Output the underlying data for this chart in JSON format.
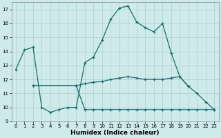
{
  "xlabel": "Humidex (Indice chaleur)",
  "bg_color": "#ceeaea",
  "grid_color": "#add0d0",
  "line_color": "#1a6b6b",
  "ylim": [
    9,
    17.5
  ],
  "xlim": [
    -0.5,
    23.5
  ],
  "yticks": [
    9,
    10,
    11,
    12,
    13,
    14,
    15,
    16,
    17
  ],
  "xticks": [
    0,
    1,
    2,
    3,
    4,
    5,
    6,
    7,
    8,
    9,
    10,
    11,
    12,
    13,
    14,
    15,
    16,
    17,
    18,
    19,
    20,
    21,
    22,
    23
  ],
  "line1_x": [
    0,
    1,
    2,
    3,
    4,
    5,
    6,
    7,
    8,
    9,
    10,
    11,
    12,
    13,
    14,
    15,
    16,
    17,
    18,
    19,
    20,
    21,
    22,
    23
  ],
  "line1_y": [
    12.7,
    14.1,
    14.3,
    10.0,
    9.65,
    9.85,
    10.0,
    10.0,
    13.2,
    13.6,
    14.8,
    16.3,
    17.1,
    17.25,
    16.1,
    15.7,
    15.4,
    16.0,
    13.9,
    12.2,
    11.5,
    11.0,
    10.4,
    9.85
  ],
  "line2_x": [
    2,
    7,
    8,
    9,
    10,
    11,
    12,
    13,
    14,
    15,
    16,
    17,
    18,
    19,
    20
  ],
  "line2_y": [
    11.55,
    11.55,
    11.7,
    11.8,
    11.85,
    12.0,
    12.1,
    12.2,
    12.1,
    12.0,
    12.0,
    12.0,
    12.1,
    12.2,
    11.5
  ],
  "line3_x": [
    2,
    7,
    8,
    9,
    10,
    11,
    12,
    13,
    14,
    15,
    16,
    17,
    18,
    19,
    20,
    21,
    22,
    23
  ],
  "line3_y": [
    11.55,
    11.55,
    9.85,
    9.85,
    9.85,
    9.85,
    9.85,
    9.85,
    9.85,
    9.85,
    9.85,
    9.85,
    9.85,
    9.85,
    9.85,
    9.85,
    9.85,
    9.85
  ]
}
